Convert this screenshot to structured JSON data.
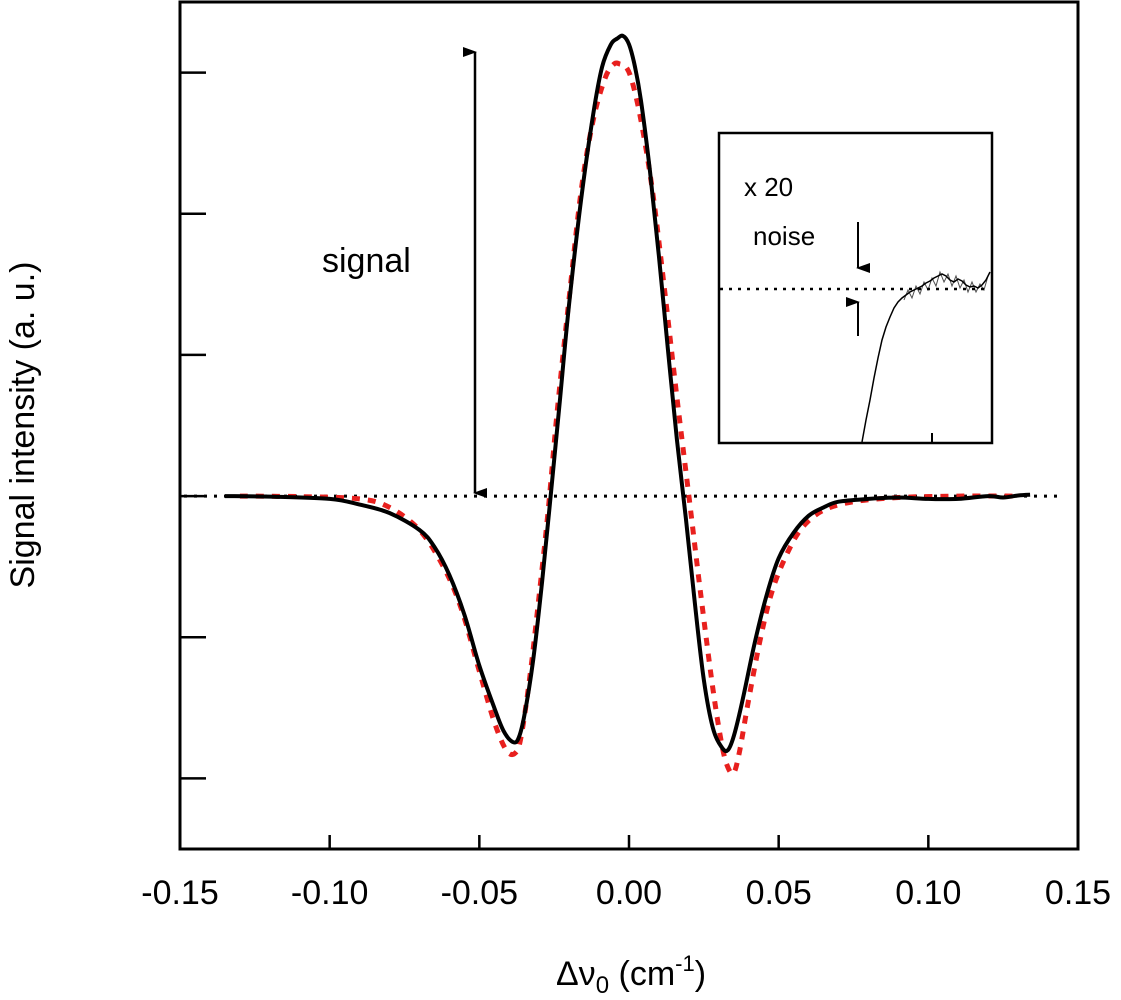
{
  "chart_data": {
    "type": "line",
    "title": "",
    "xlabel": "Δν",
    "xlabel_sub": "0",
    "xlabel_unit_open": " (cm",
    "xlabel_unit_sup": "-1",
    "xlabel_unit_close": ")",
    "ylabel": "Signal intensity (a. u.)",
    "xlim": [
      -0.15,
      0.15
    ],
    "ylim": [
      -1.25,
      1.75
    ],
    "x_ticks": [
      -0.15,
      -0.1,
      -0.05,
      0.0,
      0.05,
      0.1,
      0.15
    ],
    "x_tick_labels": [
      "-0.15",
      "-0.10",
      "-0.05",
      "0.00",
      "0.05",
      "0.10",
      "0.15"
    ],
    "y_ticks": [
      -1.0,
      -0.5,
      0.0,
      0.5,
      1.0,
      1.5
    ],
    "grid": false,
    "legend": "none",
    "baseline": {
      "y": 0,
      "style": "dotted",
      "color": "#000000"
    },
    "series": [
      {
        "color": "#000000",
        "style": "solid",
        "x": [
          -0.135,
          -0.12,
          -0.1,
          -0.09,
          -0.08,
          -0.07,
          -0.065,
          -0.06,
          -0.055,
          -0.05,
          -0.045,
          -0.042,
          -0.039,
          -0.037,
          -0.035,
          -0.032,
          -0.029,
          -0.026,
          -0.023,
          -0.02,
          -0.016,
          -0.012,
          -0.009,
          -0.006,
          -0.004,
          -0.002,
          0.0,
          0.002,
          0.004,
          0.007,
          0.01,
          0.013,
          0.016,
          0.019,
          0.022,
          0.025,
          0.028,
          0.031,
          0.033,
          0.035,
          0.038,
          0.042,
          0.046,
          0.05,
          0.055,
          0.06,
          0.065,
          0.07,
          0.08,
          0.09,
          0.1,
          0.11,
          0.12,
          0.125,
          0.13,
          0.134
        ],
        "y": [
          0.0,
          -0.002,
          -0.01,
          -0.03,
          -0.06,
          -0.12,
          -0.18,
          -0.28,
          -0.42,
          -0.6,
          -0.75,
          -0.83,
          -0.87,
          -0.86,
          -0.78,
          -0.58,
          -0.3,
          0.02,
          0.35,
          0.68,
          1.05,
          1.35,
          1.52,
          1.6,
          1.62,
          1.63,
          1.6,
          1.52,
          1.4,
          1.15,
          0.85,
          0.52,
          0.2,
          -0.08,
          -0.38,
          -0.65,
          -0.82,
          -0.89,
          -0.9,
          -0.85,
          -0.72,
          -0.52,
          -0.35,
          -0.22,
          -0.13,
          -0.07,
          -0.04,
          -0.02,
          -0.01,
          -0.005,
          -0.01,
          -0.01,
          0.0,
          -0.005,
          0.002,
          0.005
        ]
      },
      {
        "color": "#e8201e",
        "style": "dotted",
        "x": [
          -0.13,
          -0.11,
          -0.09,
          -0.08,
          -0.07,
          -0.062,
          -0.056,
          -0.05,
          -0.045,
          -0.041,
          -0.038,
          -0.036,
          -0.033,
          -0.03,
          -0.027,
          -0.024,
          -0.02,
          -0.016,
          -0.012,
          -0.008,
          -0.005,
          -0.003,
          -0.001,
          0.001,
          0.004,
          0.008,
          0.012,
          0.016,
          0.02,
          0.024,
          0.028,
          0.031,
          0.033,
          0.035,
          0.037,
          0.04,
          0.044,
          0.048,
          0.053,
          0.058,
          0.065,
          0.075,
          0.09,
          0.11,
          0.13
        ],
        "y": [
          0.0,
          -0.002,
          -0.01,
          -0.04,
          -0.12,
          -0.25,
          -0.4,
          -0.62,
          -0.8,
          -0.9,
          -0.91,
          -0.85,
          -0.63,
          -0.35,
          -0.05,
          0.3,
          0.7,
          1.08,
          1.33,
          1.48,
          1.53,
          1.53,
          1.52,
          1.47,
          1.33,
          1.07,
          0.72,
          0.35,
          0.0,
          -0.35,
          -0.68,
          -0.88,
          -0.96,
          -0.98,
          -0.9,
          -0.72,
          -0.5,
          -0.33,
          -0.2,
          -0.11,
          -0.05,
          -0.02,
          -0.005,
          0.0,
          0.0
        ]
      }
    ],
    "annotations": {
      "signal_label": "signal",
      "inset_scale_label": "x 20",
      "inset_noise_label": "noise"
    }
  }
}
